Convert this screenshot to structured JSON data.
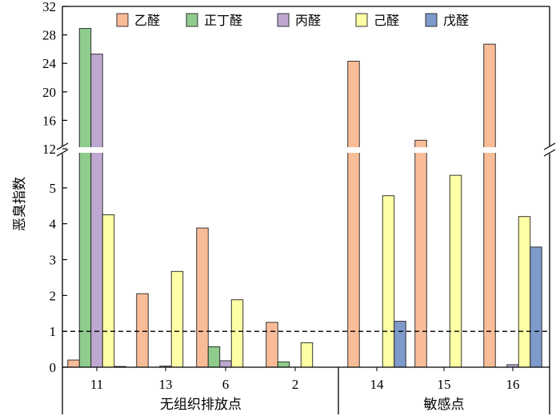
{
  "chart_data": {
    "type": "bar",
    "ylabel": "恶臭指数",
    "categories": [
      "11",
      "13",
      "6",
      "2",
      "14",
      "15",
      "16"
    ],
    "groups": [
      {
        "label": "无组织排放点",
        "categories": [
          "11",
          "13",
          "6",
          "2"
        ]
      },
      {
        "label": "敏感点",
        "categories": [
          "14",
          "15",
          "16"
        ]
      }
    ],
    "series": [
      {
        "name": "乙醛",
        "color": "#F9BC98",
        "values": [
          0.2,
          2.05,
          3.88,
          1.25,
          24.3,
          13.2,
          26.7
        ]
      },
      {
        "name": "正丁醛",
        "color": "#8FCB8D",
        "values": [
          28.9,
          0.0,
          0.57,
          0.15,
          0.0,
          0.0,
          0.0
        ]
      },
      {
        "name": "丙醛",
        "color": "#BEA7D1",
        "values": [
          25.3,
          0.03,
          0.18,
          0.0,
          0.0,
          0.0,
          0.07
        ]
      },
      {
        "name": "己醛",
        "color": "#FFFFA5",
        "values": [
          4.25,
          2.67,
          1.88,
          0.68,
          4.78,
          5.35,
          4.2
        ]
      },
      {
        "name": "戊醛",
        "color": "#7E9ACB",
        "values": [
          0.02,
          0.0,
          0.0,
          0.0,
          1.28,
          0.0,
          3.35
        ]
      }
    ],
    "axis_break": {
      "lower_range": [
        0,
        6
      ],
      "upper_range": [
        12,
        32
      ]
    },
    "lower_ticks": [
      "0",
      "1",
      "2",
      "3",
      "4",
      "5"
    ],
    "upper_ticks": [
      "12",
      "16",
      "20",
      "24",
      "28",
      "32"
    ],
    "reference_line": {
      "y": 1,
      "style": "dashed"
    },
    "legend_position": "top"
  }
}
